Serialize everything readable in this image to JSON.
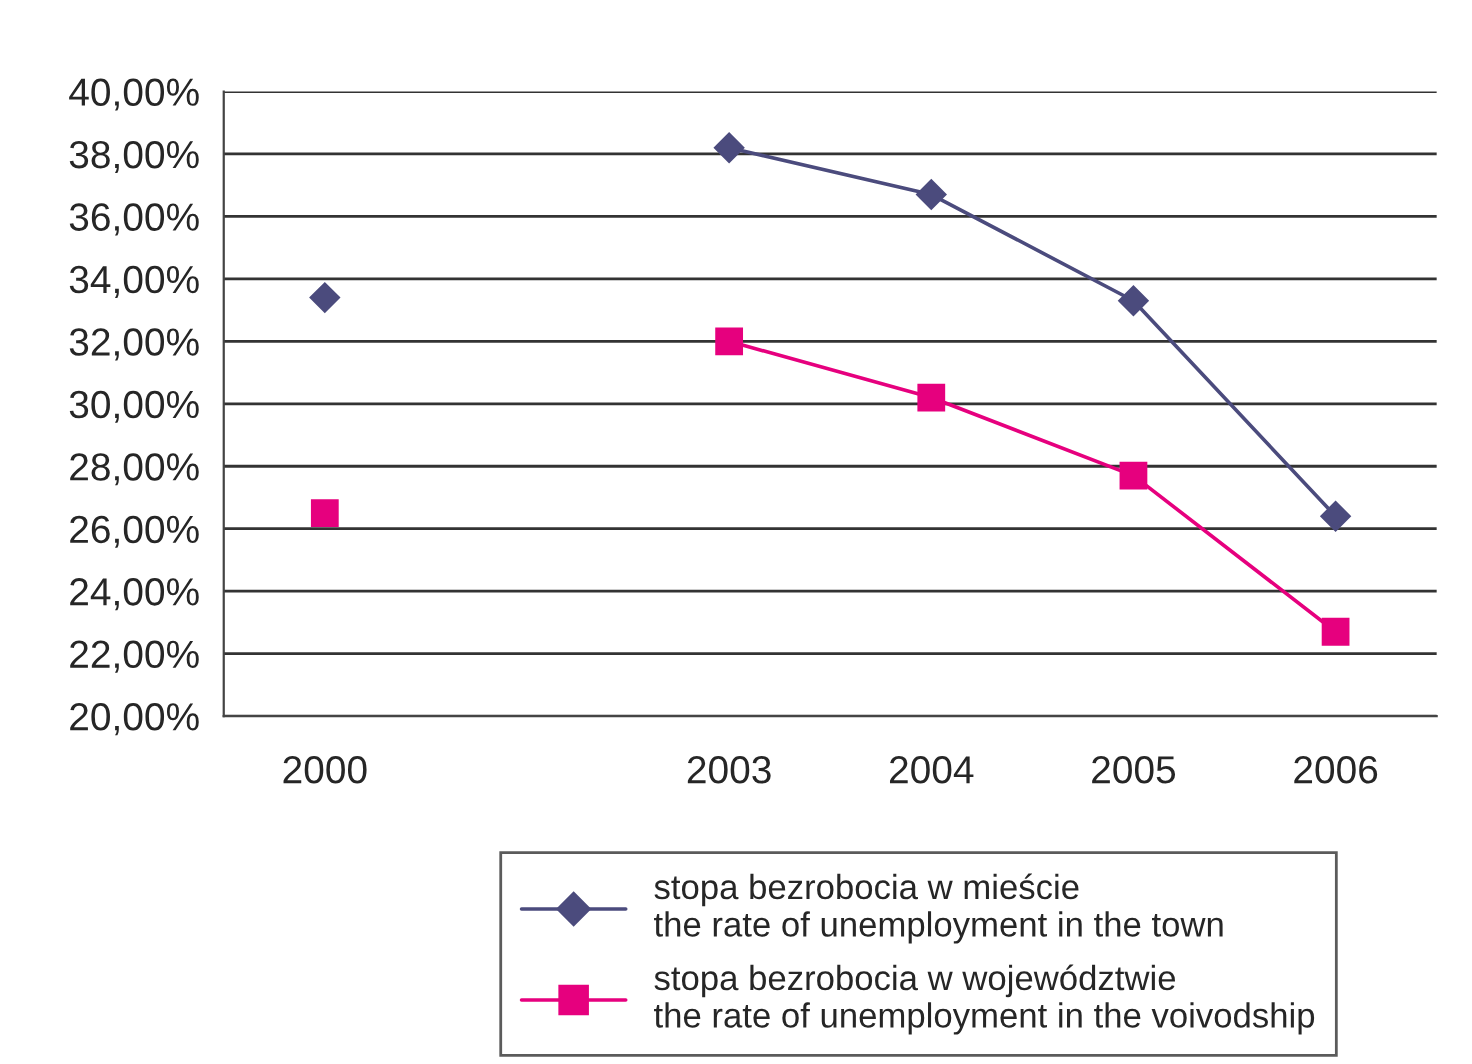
{
  "chart_data": {
    "type": "line",
    "categories": [
      "2000",
      null,
      "2003",
      "2004",
      "2005",
      "2006"
    ],
    "series": [
      {
        "name": "stopa bezrobocia w mieście\nthe rate of unemployment in the town",
        "color": "#4b4b7d",
        "marker": "diamond",
        "values": [
          33.4,
          null,
          38.2,
          36.7,
          33.3,
          26.4
        ]
      },
      {
        "name": "stopa bezrobocia w województwie\nthe rate of unemployment in the voivodship",
        "color": "#e6007e",
        "marker": "square",
        "values": [
          26.5,
          null,
          32.0,
          30.2,
          27.7,
          22.7
        ]
      }
    ],
    "ylim": [
      20,
      40
    ],
    "yticks": [
      {
        "value": 20,
        "label": "20,00%"
      },
      {
        "value": 22,
        "label": "22,00%"
      },
      {
        "value": 24,
        "label": "24,00%"
      },
      {
        "value": 26,
        "label": "26,00%"
      },
      {
        "value": 28,
        "label": "28,00%"
      },
      {
        "value": 30,
        "label": "30,00%"
      },
      {
        "value": 32,
        "label": "32,00%"
      },
      {
        "value": 34,
        "label": "34,00%"
      },
      {
        "value": 36,
        "label": "36,00%"
      },
      {
        "value": 38,
        "label": "38,00%"
      },
      {
        "value": 40,
        "label": "40,00%"
      }
    ],
    "grid": "y",
    "legend": "bottom"
  }
}
